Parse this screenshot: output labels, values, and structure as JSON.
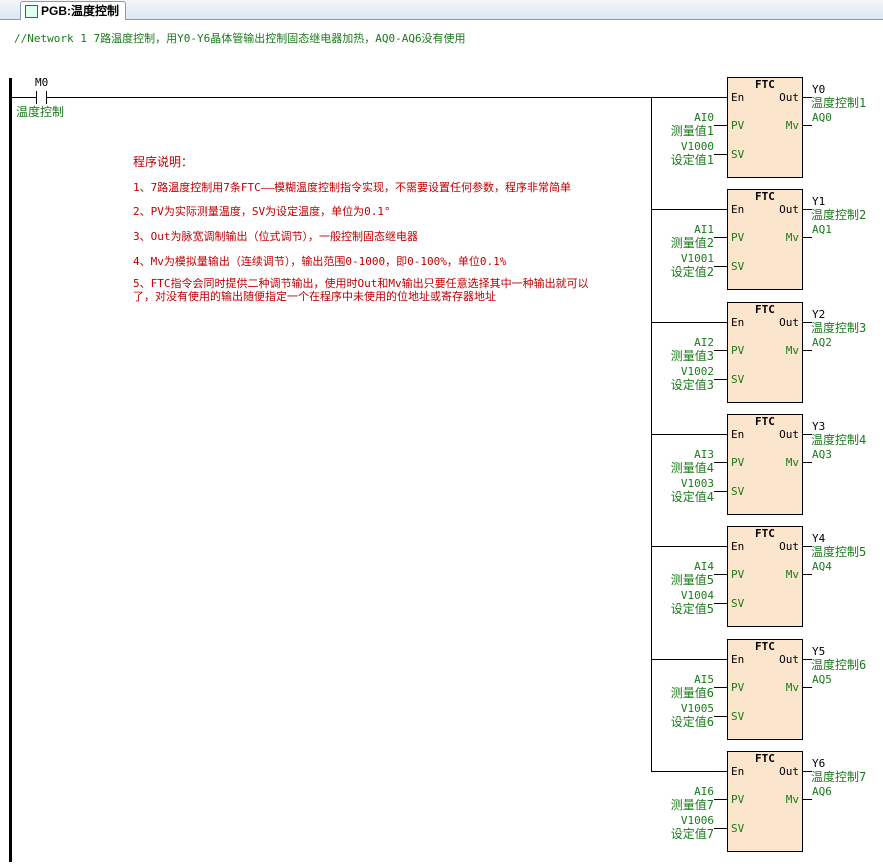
{
  "tab": {
    "title": "PGB:温度控制",
    "icon": "ladder-program-icon"
  },
  "network_comment": "//Network 1  7路温度控制，用Y0-Y6晶体管输出控制固态继电器加热，AQ0-AQ6没有使用",
  "contact": {
    "address": "M0",
    "label": "温度控制"
  },
  "notes": {
    "title": "程序说明：",
    "lines": [
      "1、7路温度控制用7条FTC——模糊温度控制指令实现，不需要设置任何参数，程序非常简单",
      "2、PV为实际测量温度，SV为设定温度，单位为0.1°",
      "3、Out为脉宽调制输出（位式调节），一般控制固态继电器",
      "4、Mv为模拟量输出（连续调节），输出范围0-1000，即0-100%，单位0.1%",
      "5、FTC指令会同时提供二种调节输出，使用时Out和Mv输出只要任意选择其中一种输出就可以\n了，对没有使用的输出随便指定一个在程序中未使用的位地址或寄存器地址"
    ]
  },
  "block_labels": {
    "name": "FTC",
    "en": "En",
    "pv": "PV",
    "sv": "SV",
    "out": "Out",
    "mv": "Mv"
  },
  "blocks": [
    {
      "pv": "AI0",
      "pv_label": "测量值1",
      "sv": "V1000",
      "sv_label": "设定值1",
      "out": "Y0",
      "out_label": "温度控制1",
      "mv": "AQ0"
    },
    {
      "pv": "AI1",
      "pv_label": "测量值2",
      "sv": "V1001",
      "sv_label": "设定值2",
      "out": "Y1",
      "out_label": "温度控制2",
      "mv": "AQ1"
    },
    {
      "pv": "AI2",
      "pv_label": "测量值3",
      "sv": "V1002",
      "sv_label": "设定值3",
      "out": "Y2",
      "out_label": "温度控制3",
      "mv": "AQ2"
    },
    {
      "pv": "AI3",
      "pv_label": "测量值4",
      "sv": "V1003",
      "sv_label": "设定值4",
      "out": "Y3",
      "out_label": "温度控制4",
      "mv": "AQ3"
    },
    {
      "pv": "AI4",
      "pv_label": "测量值5",
      "sv": "V1004",
      "sv_label": "设定值5",
      "out": "Y4",
      "out_label": "温度控制5",
      "mv": "AQ4"
    },
    {
      "pv": "AI5",
      "pv_label": "测量值6",
      "sv": "V1005",
      "sv_label": "设定值6",
      "out": "Y5",
      "out_label": "温度控制6",
      "mv": "AQ5"
    },
    {
      "pv": "AI6",
      "pv_label": "测量值7",
      "sv": "V1006",
      "sv_label": "设定值7",
      "out": "Y6",
      "out_label": "温度控制7",
      "mv": "AQ6"
    }
  ]
}
